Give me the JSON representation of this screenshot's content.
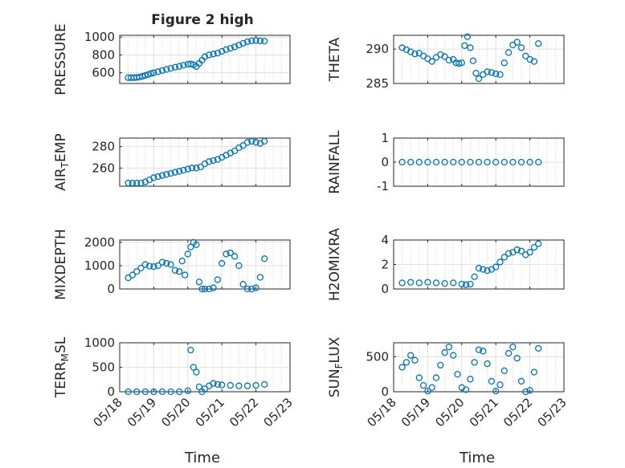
{
  "figure": {
    "title": "Figure 2 high",
    "xlabel": "Time",
    "x_ticks": [
      "05/18",
      "05/19",
      "05/20",
      "05/21",
      "05/22",
      "05/23"
    ],
    "marker_color": "#0072BD"
  },
  "chart_data": [
    {
      "type": "scatter",
      "ylabel": "PRESSURE",
      "ylim": [
        480,
        1020
      ],
      "yticks": [
        600,
        800,
        1000
      ],
      "x": [
        "05/18 06:00",
        "05/18 08:00",
        "05/18 10:00",
        "05/18 12:00",
        "05/18 14:00",
        "05/18 16:00",
        "05/18 18:00",
        "05/18 20:00",
        "05/18 22:00",
        "05/19 00:00",
        "05/19 03:00",
        "05/19 06:00",
        "05/19 09:00",
        "05/19 12:00",
        "05/19 15:00",
        "05/19 18:00",
        "05/19 21:00",
        "05/20 00:00",
        "05/20 02:00",
        "05/20 04:00",
        "05/20 06:00",
        "05/20 08:00",
        "05/20 10:00",
        "05/20 12:00",
        "05/20 15:00",
        "05/20 18:00",
        "05/20 21:00",
        "05/21 00:00",
        "05/21 03:00",
        "05/21 06:00",
        "05/21 09:00",
        "05/21 12:00",
        "05/21 15:00",
        "05/21 18:00",
        "05/21 21:00",
        "05/22 00:00",
        "05/22 03:00",
        "05/22 06:00"
      ],
      "y": [
        545,
        545,
        545,
        548,
        552,
        560,
        570,
        580,
        592,
        600,
        612,
        625,
        638,
        650,
        662,
        672,
        685,
        695,
        700,
        690,
        670,
        705,
        740,
        780,
        800,
        810,
        820,
        840,
        860,
        875,
        890,
        910,
        930,
        948,
        958,
        962,
        958,
        955
      ]
    },
    {
      "type": "scatter",
      "ylabel": "THETA",
      "ylim": [
        285,
        292
      ],
      "yticks": [
        285,
        290
      ],
      "x": [
        "05/18 06:00",
        "05/18 09:00",
        "05/18 12:00",
        "05/18 15:00",
        "05/18 18:00",
        "05/18 21:00",
        "05/19 00:00",
        "05/19 03:00",
        "05/19 06:00",
        "05/19 09:00",
        "05/19 12:00",
        "05/19 15:00",
        "05/19 18:00",
        "05/19 20:00",
        "05/19 22:00",
        "05/20 00:00",
        "05/20 02:00",
        "05/20 04:00",
        "05/20 06:00",
        "05/20 08:00",
        "05/20 10:00",
        "05/20 12:00",
        "05/20 15:00",
        "05/20 18:00",
        "05/20 21:00",
        "05/21 00:00",
        "05/21 03:00",
        "05/21 06:00",
        "05/21 09:00",
        "05/21 12:00",
        "05/21 15:00",
        "05/21 18:00",
        "05/21 21:00",
        "05/22 00:00",
        "05/22 03:00",
        "05/22 06:00"
      ],
      "y": [
        290.2,
        289.9,
        289.6,
        289.3,
        289.4,
        289.0,
        288.6,
        288.2,
        288.8,
        289.2,
        288.9,
        288.4,
        288.5,
        288.0,
        287.9,
        288.0,
        290.5,
        291.8,
        290.2,
        288.3,
        286.5,
        285.7,
        286.3,
        286.7,
        286.6,
        286.4,
        286.3,
        288.0,
        289.5,
        290.6,
        291.0,
        290.2,
        289.0,
        288.5,
        288.2,
        290.8
      ]
    },
    {
      "type": "scatter",
      "ylabel": "AIR_TEMP",
      "ylim": [
        243,
        288
      ],
      "yticks": [
        260,
        280
      ],
      "x": [
        "05/18 06:00",
        "05/18 09:00",
        "05/18 12:00",
        "05/18 15:00",
        "05/18 18:00",
        "05/18 21:00",
        "05/19 00:00",
        "05/19 03:00",
        "05/19 06:00",
        "05/19 09:00",
        "05/19 12:00",
        "05/19 15:00",
        "05/19 18:00",
        "05/19 21:00",
        "05/20 00:00",
        "05/20 03:00",
        "05/20 06:00",
        "05/20 09:00",
        "05/20 12:00",
        "05/20 15:00",
        "05/20 18:00",
        "05/20 21:00",
        "05/21 00:00",
        "05/21 03:00",
        "05/21 06:00",
        "05/21 09:00",
        "05/21 12:00",
        "05/21 15:00",
        "05/21 18:00",
        "05/21 21:00",
        "05/22 00:00",
        "05/22 03:00",
        "05/22 06:00"
      ],
      "y": [
        246,
        246,
        246,
        246,
        247,
        249,
        251,
        252,
        253,
        254,
        255,
        256,
        257,
        258,
        259,
        260,
        260,
        261,
        264,
        266,
        267,
        268,
        270,
        272,
        274,
        276,
        279,
        281,
        284,
        285,
        284,
        283,
        285
      ]
    },
    {
      "type": "scatter",
      "ylabel": "RAINFALL",
      "ylim": [
        -1,
        1
      ],
      "yticks": [
        -1,
        0,
        1
      ],
      "x": [
        "05/18 06:00",
        "05/18 12:00",
        "05/18 18:00",
        "05/19 00:00",
        "05/19 06:00",
        "05/19 12:00",
        "05/19 18:00",
        "05/20 00:00",
        "05/20 06:00",
        "05/20 12:00",
        "05/20 18:00",
        "05/21 00:00",
        "05/21 06:00",
        "05/21 12:00",
        "05/21 18:00",
        "05/22 00:00",
        "05/22 06:00"
      ],
      "y": [
        0,
        0,
        0,
        0,
        0,
        0,
        0,
        0,
        0,
        0,
        0,
        0,
        0,
        0,
        0,
        0,
        0
      ]
    },
    {
      "type": "scatter",
      "ylabel": "MIXDEPTH",
      "ylim": [
        0,
        2100
      ],
      "yticks": [
        0,
        1000,
        2000
      ],
      "x": [
        "05/18 06:00",
        "05/18 09:00",
        "05/18 12:00",
        "05/18 15:00",
        "05/18 18:00",
        "05/18 21:00",
        "05/19 00:00",
        "05/19 03:00",
        "05/19 06:00",
        "05/19 09:00",
        "05/19 12:00",
        "05/19 15:00",
        "05/19 18:00",
        "05/19 20:00",
        "05/19 22:00",
        "05/20 00:00",
        "05/20 02:00",
        "05/20 04:00",
        "05/20 06:00",
        "05/20 08:00",
        "05/20 10:00",
        "05/20 12:00",
        "05/20 15:00",
        "05/20 18:00",
        "05/20 21:00",
        "05/21 00:00",
        "05/21 03:00",
        "05/21 06:00",
        "05/21 09:00",
        "05/21 12:00",
        "05/21 15:00",
        "05/21 18:00",
        "05/21 21:00",
        "05/22 00:00",
        "05/22 03:00",
        "05/22 06:00"
      ],
      "y": [
        480,
        600,
        750,
        900,
        1050,
        980,
        960,
        1000,
        1150,
        1100,
        1050,
        800,
        750,
        1200,
        600,
        1500,
        1800,
        2000,
        1900,
        300,
        0,
        0,
        0,
        50,
        400,
        1100,
        1500,
        1550,
        1400,
        1000,
        200,
        0,
        0,
        50,
        500,
        1300
      ]
    },
    {
      "type": "scatter",
      "ylabel": "H2OMIXRA",
      "ylim": [
        0,
        4
      ],
      "yticks": [
        0,
        2,
        4
      ],
      "x": [
        "05/18 06:00",
        "05/18 12:00",
        "05/18 18:00",
        "05/19 00:00",
        "05/19 06:00",
        "05/19 12:00",
        "05/19 18:00",
        "05/20 00:00",
        "05/20 03:00",
        "05/20 06:00",
        "05/20 09:00",
        "05/20 12:00",
        "05/20 15:00",
        "05/20 18:00",
        "05/20 21:00",
        "05/21 00:00",
        "05/21 03:00",
        "05/21 06:00",
        "05/21 09:00",
        "05/21 12:00",
        "05/21 15:00",
        "05/21 18:00",
        "05/21 21:00",
        "05/22 00:00",
        "05/22 03:00",
        "05/22 06:00"
      ],
      "y": [
        0.5,
        0.55,
        0.5,
        0.55,
        0.5,
        0.45,
        0.5,
        0.4,
        0.35,
        0.4,
        1.0,
        1.7,
        1.6,
        1.5,
        1.6,
        1.8,
        2.2,
        2.6,
        2.9,
        3.0,
        3.2,
        3.1,
        2.8,
        3.0,
        3.4,
        3.7
      ]
    },
    {
      "type": "scatter",
      "ylabel": "TERR_MSL",
      "ylim": [
        0,
        1000
      ],
      "yticks": [
        0,
        500,
        1000
      ],
      "x": [
        "05/18 06:00",
        "05/18 12:00",
        "05/18 18:00",
        "05/19 00:00",
        "05/19 06:00",
        "05/19 12:00",
        "05/19 18:00",
        "05/20 00:00",
        "05/20 02:00",
        "05/20 04:00",
        "05/20 06:00",
        "05/20 08:00",
        "05/20 10:00",
        "05/20 12:00",
        "05/20 15:00",
        "05/20 18:00",
        "05/20 21:00",
        "05/21 00:00",
        "05/21 06:00",
        "05/21 12:00",
        "05/21 18:00",
        "05/22 00:00",
        "05/22 06:00"
      ],
      "y": [
        0,
        0,
        0,
        0,
        0,
        0,
        0,
        20,
        850,
        500,
        400,
        100,
        0,
        60,
        120,
        170,
        150,
        140,
        130,
        120,
        120,
        130,
        150
      ]
    },
    {
      "type": "scatter",
      "ylabel": "SUN_FLUX",
      "ylim": [
        0,
        700
      ],
      "yticks": [
        0,
        500
      ],
      "x": [
        "05/18 06:00",
        "05/18 09:00",
        "05/18 12:00",
        "05/18 15:00",
        "05/18 18:00",
        "05/18 21:00",
        "05/19 00:00",
        "05/19 03:00",
        "05/19 06:00",
        "05/19 09:00",
        "05/19 12:00",
        "05/19 15:00",
        "05/19 18:00",
        "05/19 21:00",
        "05/20 00:00",
        "05/20 03:00",
        "05/20 06:00",
        "05/20 09:00",
        "05/20 12:00",
        "05/20 15:00",
        "05/20 18:00",
        "05/20 21:00",
        "05/21 00:00",
        "05/21 03:00",
        "05/21 06:00",
        "05/21 09:00",
        "05/21 12:00",
        "05/21 15:00",
        "05/21 18:00",
        "05/21 21:00",
        "05/22 00:00",
        "05/22 03:00",
        "05/22 06:00"
      ],
      "y": [
        350,
        420,
        520,
        450,
        200,
        90,
        10,
        60,
        200,
        380,
        560,
        640,
        520,
        250,
        60,
        30,
        180,
        420,
        600,
        580,
        400,
        150,
        10,
        100,
        300,
        550,
        640,
        480,
        150,
        0,
        20,
        280,
        620
      ]
    }
  ]
}
